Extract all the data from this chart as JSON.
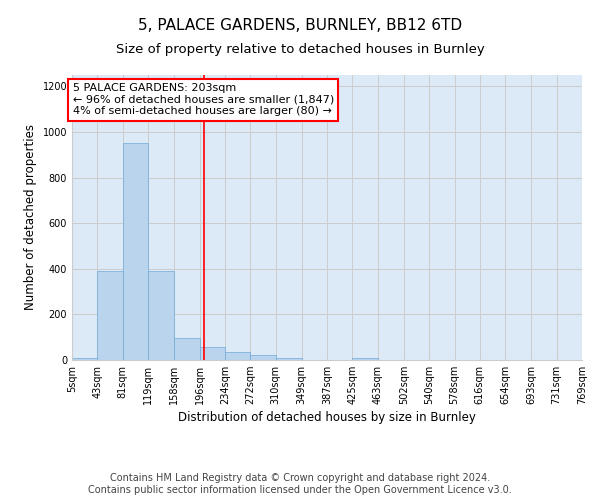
{
  "title_line1": "5, PALACE GARDENS, BURNLEY, BB12 6TD",
  "title_line2": "Size of property relative to detached houses in Burnley",
  "xlabel": "Distribution of detached houses by size in Burnley",
  "ylabel": "Number of detached properties",
  "bins": [
    5,
    43,
    81,
    119,
    158,
    196,
    234,
    272,
    310,
    349,
    387,
    425,
    463,
    502,
    540,
    578,
    616,
    654,
    693,
    731,
    769
  ],
  "counts": [
    10,
    390,
    950,
    390,
    95,
    55,
    35,
    20,
    10,
    0,
    0,
    10,
    0,
    0,
    0,
    0,
    0,
    0,
    0,
    0
  ],
  "bar_color": "#bad4ee",
  "bar_edgecolor": "#6fa8d6",
  "vline_x": 203,
  "vline_color": "red",
  "annotation_text": "5 PALACE GARDENS: 203sqm\n← 96% of detached houses are smaller (1,847)\n4% of semi-detached houses are larger (80) →",
  "annotation_box_edgecolor": "red",
  "annotation_text_color": "black",
  "ylim": [
    0,
    1250
  ],
  "yticks": [
    0,
    200,
    400,
    600,
    800,
    1000,
    1200
  ],
  "grid_color": "#cccccc",
  "background_color": "#dce9f7",
  "footer_line1": "Contains HM Land Registry data © Crown copyright and database right 2024.",
  "footer_line2": "Contains public sector information licensed under the Open Government Licence v3.0.",
  "title_fontsize": 11,
  "subtitle_fontsize": 9.5,
  "axis_label_fontsize": 8.5,
  "tick_fontsize": 7,
  "annotation_fontsize": 8,
  "footer_fontsize": 7
}
